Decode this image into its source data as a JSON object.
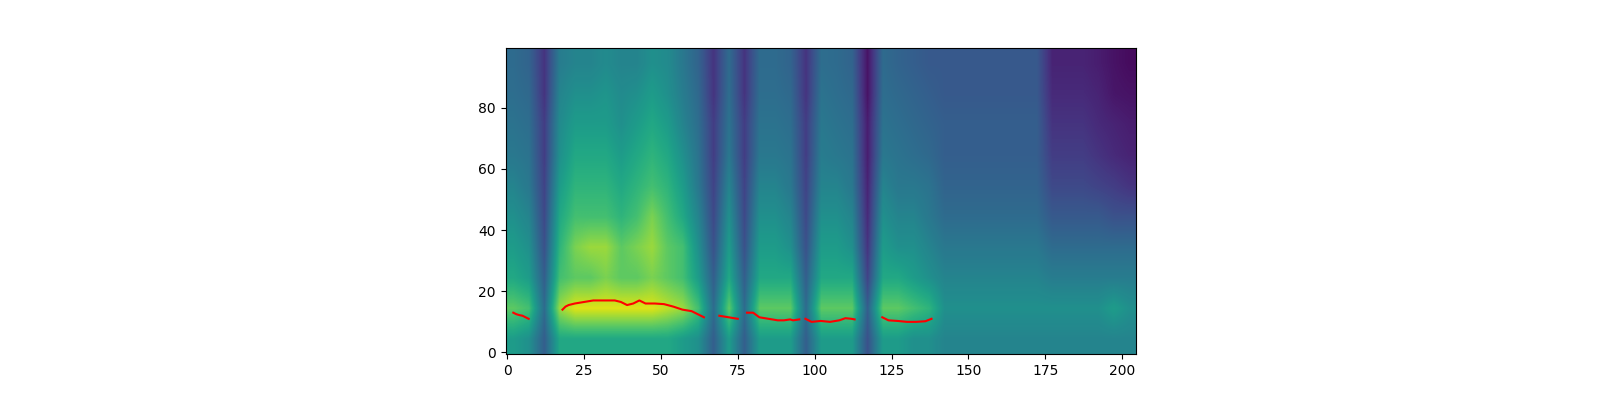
{
  "chart_data": {
    "type": "heatmap",
    "xlim": [
      -0.5,
      204.5
    ],
    "ylim": [
      -0.5,
      99.5
    ],
    "xticks": [
      0,
      25,
      50,
      75,
      100,
      125,
      150,
      175,
      200
    ],
    "yticks": [
      0,
      20,
      40,
      60,
      80
    ],
    "color_range": [
      0,
      1
    ],
    "cells": [
      [
        0.55,
        0.5,
        0.3,
        0.6,
        0.6,
        0.6,
        0.6,
        0.6,
        0.6,
        0.6,
        0.6,
        0.55,
        0.5,
        0.3,
        0.55,
        0.3,
        0.55,
        0.55,
        0.55,
        0.3,
        0.55,
        0.55,
        0.55,
        0.25,
        0.55,
        0.55,
        0.5,
        0.5,
        0.45,
        0.45,
        0.45,
        0.45,
        0.45,
        0.45,
        0.45,
        0.45,
        0.45,
        0.45,
        0.45,
        0.45,
        0.45
      ],
      [
        0.75,
        0.7,
        0.35,
        0.85,
        0.95,
        0.95,
        0.95,
        0.95,
        0.95,
        0.95,
        0.9,
        0.85,
        0.7,
        0.35,
        0.75,
        0.35,
        0.75,
        0.75,
        0.75,
        0.35,
        0.75,
        0.75,
        0.75,
        0.3,
        0.75,
        0.75,
        0.7,
        0.65,
        0.5,
        0.5,
        0.5,
        0.5,
        0.5,
        0.5,
        0.5,
        0.5,
        0.5,
        0.5,
        0.5,
        0.55,
        0.5
      ],
      [
        0.6,
        0.55,
        0.3,
        0.7,
        0.75,
        0.75,
        0.8,
        0.75,
        0.75,
        0.8,
        0.75,
        0.7,
        0.55,
        0.3,
        0.6,
        0.3,
        0.6,
        0.6,
        0.6,
        0.3,
        0.6,
        0.6,
        0.6,
        0.2,
        0.6,
        0.6,
        0.55,
        0.5,
        0.45,
        0.45,
        0.45,
        0.45,
        0.45,
        0.45,
        0.45,
        0.42,
        0.42,
        0.42,
        0.42,
        0.42,
        0.42
      ],
      [
        0.55,
        0.5,
        0.25,
        0.65,
        0.8,
        0.85,
        0.85,
        0.75,
        0.8,
        0.85,
        0.75,
        0.7,
        0.5,
        0.25,
        0.55,
        0.25,
        0.55,
        0.55,
        0.5,
        0.25,
        0.55,
        0.55,
        0.5,
        0.15,
        0.55,
        0.5,
        0.5,
        0.45,
        0.4,
        0.4,
        0.4,
        0.4,
        0.4,
        0.4,
        0.4,
        0.35,
        0.35,
        0.35,
        0.35,
        0.35,
        0.35
      ],
      [
        0.5,
        0.45,
        0.22,
        0.6,
        0.7,
        0.7,
        0.7,
        0.65,
        0.7,
        0.8,
        0.7,
        0.6,
        0.45,
        0.22,
        0.5,
        0.22,
        0.5,
        0.5,
        0.45,
        0.22,
        0.5,
        0.5,
        0.45,
        0.12,
        0.5,
        0.45,
        0.45,
        0.4,
        0.35,
        0.35,
        0.35,
        0.35,
        0.35,
        0.35,
        0.35,
        0.28,
        0.28,
        0.28,
        0.28,
        0.25,
        0.25
      ],
      [
        0.45,
        0.4,
        0.2,
        0.55,
        0.65,
        0.65,
        0.65,
        0.6,
        0.65,
        0.7,
        0.65,
        0.55,
        0.4,
        0.2,
        0.45,
        0.2,
        0.45,
        0.45,
        0.4,
        0.2,
        0.45,
        0.45,
        0.4,
        0.1,
        0.45,
        0.4,
        0.4,
        0.38,
        0.32,
        0.32,
        0.32,
        0.32,
        0.32,
        0.32,
        0.32,
        0.22,
        0.22,
        0.22,
        0.2,
        0.18,
        0.15
      ],
      [
        0.4,
        0.38,
        0.18,
        0.5,
        0.6,
        0.6,
        0.6,
        0.55,
        0.6,
        0.65,
        0.6,
        0.5,
        0.38,
        0.18,
        0.4,
        0.18,
        0.4,
        0.4,
        0.38,
        0.18,
        0.42,
        0.4,
        0.38,
        0.08,
        0.4,
        0.38,
        0.36,
        0.34,
        0.3,
        0.3,
        0.3,
        0.3,
        0.3,
        0.3,
        0.3,
        0.18,
        0.18,
        0.18,
        0.15,
        0.12,
        0.1
      ],
      [
        0.38,
        0.36,
        0.18,
        0.48,
        0.55,
        0.55,
        0.55,
        0.5,
        0.55,
        0.6,
        0.55,
        0.45,
        0.36,
        0.18,
        0.38,
        0.18,
        0.38,
        0.38,
        0.36,
        0.18,
        0.4,
        0.38,
        0.36,
        0.08,
        0.38,
        0.36,
        0.34,
        0.32,
        0.3,
        0.3,
        0.3,
        0.3,
        0.3,
        0.3,
        0.3,
        0.15,
        0.15,
        0.15,
        0.12,
        0.1,
        0.08
      ],
      [
        0.36,
        0.34,
        0.15,
        0.45,
        0.5,
        0.5,
        0.52,
        0.48,
        0.5,
        0.55,
        0.5,
        0.42,
        0.34,
        0.15,
        0.36,
        0.15,
        0.36,
        0.36,
        0.34,
        0.15,
        0.38,
        0.36,
        0.34,
        0.05,
        0.36,
        0.34,
        0.32,
        0.3,
        0.28,
        0.28,
        0.28,
        0.28,
        0.28,
        0.28,
        0.28,
        0.12,
        0.12,
        0.12,
        0.1,
        0.06,
        0.05
      ],
      [
        0.35,
        0.32,
        0.15,
        0.42,
        0.45,
        0.45,
        0.48,
        0.45,
        0.45,
        0.5,
        0.48,
        0.4,
        0.32,
        0.15,
        0.35,
        0.15,
        0.35,
        0.35,
        0.32,
        0.15,
        0.36,
        0.35,
        0.32,
        0.05,
        0.35,
        0.32,
        0.3,
        0.28,
        0.28,
        0.28,
        0.28,
        0.28,
        0.28,
        0.28,
        0.28,
        0.1,
        0.1,
        0.1,
        0.08,
        0.05,
        0.03
      ]
    ],
    "series": [
      {
        "type": "line",
        "color": "red",
        "x": [
          2,
          3,
          4,
          5,
          6,
          7,
          8,
          18,
          19,
          20,
          22,
          25,
          28,
          31,
          35,
          37,
          39,
          41,
          43,
          45,
          48,
          51,
          54,
          57,
          60,
          62,
          64,
          66,
          69,
          72,
          75,
          76,
          78,
          80,
          82,
          85,
          88,
          90,
          92,
          93,
          95,
          96,
          97,
          99,
          102,
          105,
          108,
          110,
          112,
          113,
          115,
          122,
          124,
          127,
          130,
          133,
          136,
          138
        ],
        "values": [
          13,
          12.5,
          12.2,
          12,
          11.5,
          11,
          null,
          14,
          15,
          15.5,
          16,
          16.5,
          17,
          17,
          17,
          16.5,
          15.5,
          16,
          17,
          16,
          16,
          15.8,
          15,
          14,
          13.5,
          12.5,
          11.5,
          null,
          12,
          11.5,
          11,
          null,
          13,
          13,
          11.5,
          11,
          10.5,
          10.5,
          10.8,
          10.5,
          10.8,
          null,
          11,
          10,
          10.3,
          10,
          10.5,
          11.2,
          11,
          10.8,
          null,
          11.5,
          10.5,
          10.3,
          10,
          10,
          10.2,
          11
        ]
      }
    ]
  }
}
